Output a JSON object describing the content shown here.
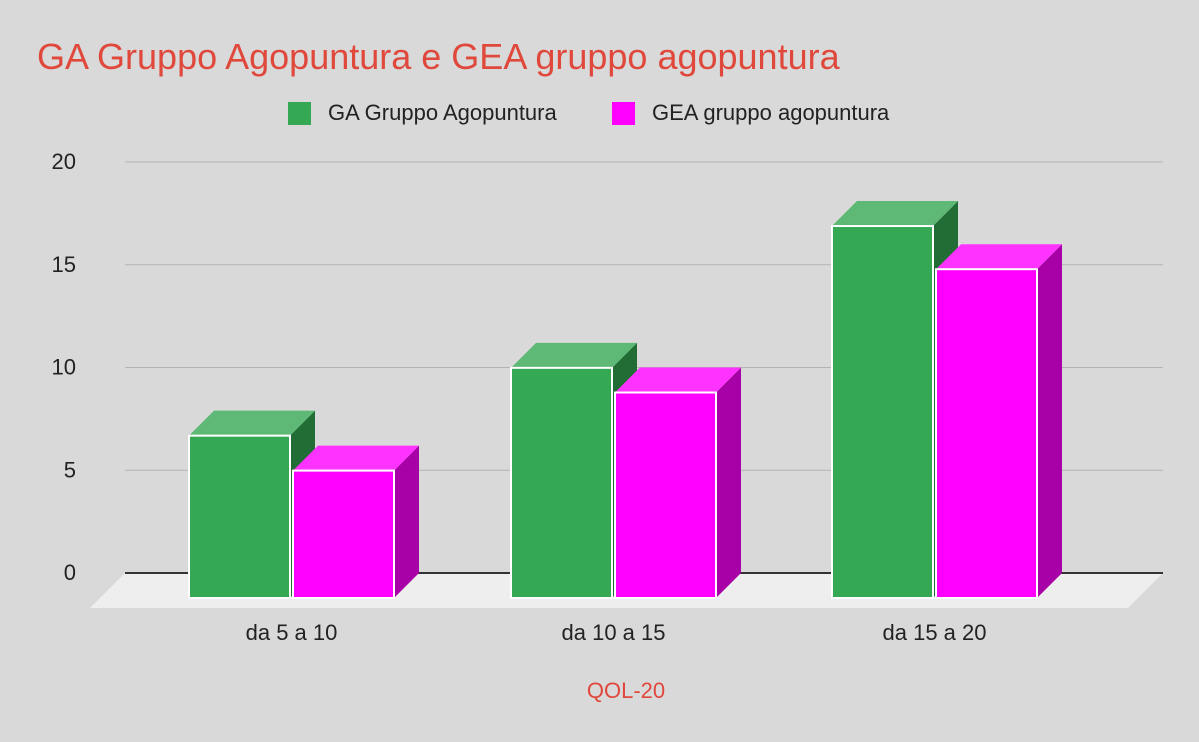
{
  "chart_data": {
    "type": "bar",
    "title": "GA Gruppo Agopuntura e GEA gruppo agopuntura",
    "xlabel": "QOL-20",
    "ylabel": "",
    "categories": [
      "da 5 a 10",
      "da 10 a 15",
      "da 15 a 20"
    ],
    "series": [
      {
        "name": "GA Gruppo Agopuntura",
        "values": [
          7.9,
          11.2,
          18.1
        ],
        "color": "#34a853"
      },
      {
        "name": "GEA gruppo agopuntura",
        "values": [
          6.2,
          10.0,
          16.0
        ],
        "color": "#ff00ff"
      }
    ],
    "ylim": [
      0,
      20
    ],
    "yticks": [
      0,
      5,
      10,
      15,
      20
    ],
    "grid": true,
    "legend": "top",
    "three_d": true,
    "colors": {
      "background": "#d9d9d9",
      "title": "#e0483c",
      "axis_title": "#e0483c",
      "gridline": "#b3b3b3",
      "floor": "#eeeeee"
    }
  }
}
